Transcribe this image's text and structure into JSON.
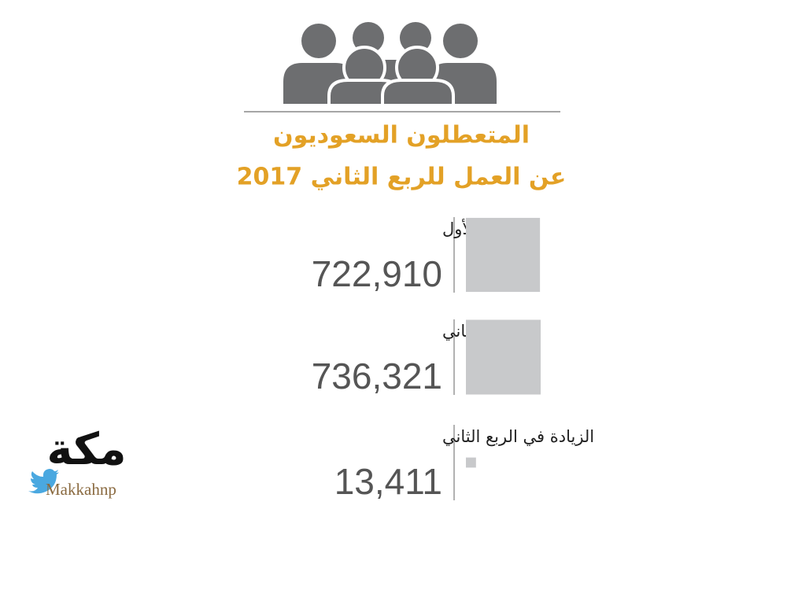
{
  "chart_data": {
    "type": "square-area",
    "title": [
      "المتعطلون السعوديون",
      "عن العمل للربع الثاني 2017"
    ],
    "categories": [
      "الربع الأول",
      "الربع الثاني",
      "الزيادة في الربع الثاني"
    ],
    "values": [
      722910,
      736321,
      13411
    ],
    "value_labels": [
      "722,910",
      "736,321",
      "13,411"
    ],
    "color": "#c8c9cb"
  },
  "logo": {
    "name": "مكة",
    "handle": "Makkahnp"
  }
}
